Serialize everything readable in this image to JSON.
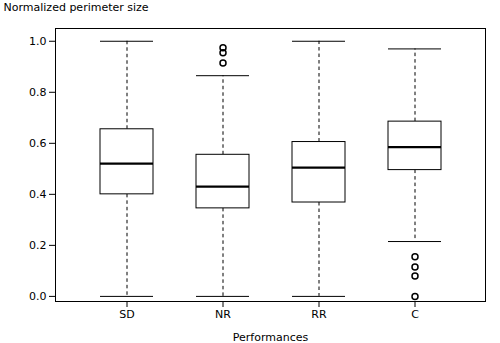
{
  "chart_data": {
    "type": "box",
    "xlabel": "Performances",
    "ylabel": "Normalized perimeter size",
    "categories": [
      "SD",
      "NR",
      "RR",
      "C"
    ],
    "boxes": [
      {
        "q1": 0.4,
        "median": 0.52,
        "q3": 0.655,
        "whisker_low": 0.0,
        "whisker_high": 1.0,
        "outliers": []
      },
      {
        "q1": 0.345,
        "median": 0.43,
        "q3": 0.555,
        "whisker_low": 0.0,
        "whisker_high": 0.865,
        "outliers": [
          0.915,
          0.955,
          0.975
        ]
      },
      {
        "q1": 0.368,
        "median": 0.505,
        "q3": 0.605,
        "whisker_low": 0.0,
        "whisker_high": 1.0,
        "outliers": []
      },
      {
        "q1": 0.495,
        "median": 0.585,
        "q3": 0.685,
        "whisker_low": 0.215,
        "whisker_high": 0.97,
        "outliers": [
          0.155,
          0.115,
          0.08,
          0.0
        ]
      }
    ],
    "ylim": [
      -0.02,
      1.05
    ],
    "yticks": [
      {
        "value": 0.0,
        "label": "0.0"
      },
      {
        "value": 0.2,
        "label": "0.2"
      },
      {
        "value": 0.4,
        "label": "0.4"
      },
      {
        "value": 0.6,
        "label": "0.6"
      },
      {
        "value": 0.8,
        "label": "0.8"
      },
      {
        "value": 1.0,
        "label": "1.0"
      }
    ],
    "grid": false
  }
}
